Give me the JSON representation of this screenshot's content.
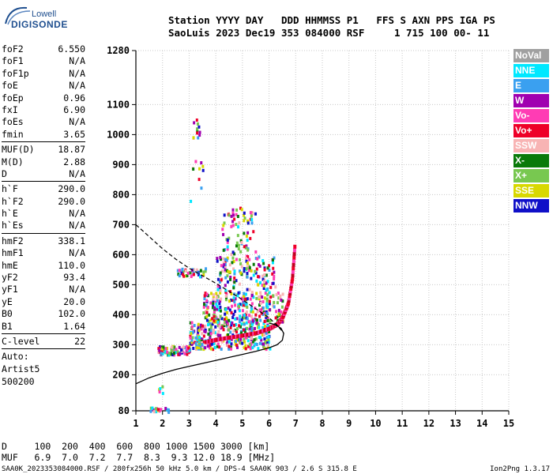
{
  "logo": {
    "brand": "Lowell",
    "product": "DIGISONDE"
  },
  "header": {
    "line1": "Station YYYY DAY   DDD HHMMSS P1   FFS S AXN PPS IGA PS",
    "line2": "SaoLuis 2023 Dec19 353 084000 RSF     1 715 100 00- 11"
  },
  "params": {
    "group1": [
      {
        "label": "foF2",
        "value": "6.550"
      },
      {
        "label": "foF1",
        "value": "N/A"
      },
      {
        "label": "foF1p",
        "value": "N/A"
      },
      {
        "label": "foE",
        "value": "N/A"
      },
      {
        "label": "foEp",
        "value": "0.96"
      },
      {
        "label": "fxI",
        "value": "6.90"
      },
      {
        "label": "foEs",
        "value": "N/A"
      },
      {
        "label": "fmin",
        "value": "3.65"
      }
    ],
    "group2": [
      {
        "label": "MUF(D)",
        "value": "18.87"
      },
      {
        "label": "M(D)",
        "value": "2.88"
      },
      {
        "label": "D",
        "value": "N/A"
      }
    ],
    "group3": [
      {
        "label": "h`F",
        "value": "290.0"
      },
      {
        "label": "h`F2",
        "value": "290.0"
      },
      {
        "label": "h`E",
        "value": "N/A"
      },
      {
        "label": "h`Es",
        "value": "N/A"
      }
    ],
    "group4": [
      {
        "label": "hmF2",
        "value": "338.1"
      },
      {
        "label": "hmF1",
        "value": "N/A"
      },
      {
        "label": "hmE",
        "value": "110.0"
      },
      {
        "label": "yF2",
        "value": "93.4"
      },
      {
        "label": "yF1",
        "value": "N/A"
      },
      {
        "label": "yE",
        "value": "20.0"
      },
      {
        "label": "B0",
        "value": "102.0"
      },
      {
        "label": "B1",
        "value": "1.64"
      }
    ],
    "group5": [
      {
        "label": "C-level",
        "value": "22"
      }
    ],
    "notes": [
      "Auto:",
      "Artist5",
      "500200"
    ]
  },
  "legend": [
    {
      "label": "NoVal",
      "color": "#a0a0a0"
    },
    {
      "label": "NNE",
      "color": "#00e8ff"
    },
    {
      "label": "E",
      "color": "#3aa0f0"
    },
    {
      "label": "W",
      "color": "#a000b0"
    },
    {
      "label": "Vo-",
      "color": "#ff3cb4"
    },
    {
      "label": "Vo+",
      "color": "#ee0028"
    },
    {
      "label": "SSW",
      "color": "#f8b4b4"
    },
    {
      "label": "X-",
      "color": "#0a7a0a"
    },
    {
      "label": "X+",
      "color": "#78c850"
    },
    {
      "label": "SSE",
      "color": "#d8d800"
    },
    {
      "label": "NNW",
      "color": "#1010c8"
    }
  ],
  "muf_table": {
    "line1": "D     100  200  400  600  800 1000 1500 3000 [km]",
    "line2": "MUF   6.9  7.0  7.2  7.7  8.3  9.3 12.0 18.9 [MHz]"
  },
  "footer": {
    "left": "SAA0K_2023353084000.RSF / 280fx256h 50 kHz 5.0 km / DPS-4 SAA0K 903 / 2.6 S 315.8 E",
    "right": "Ion2Png 1.3.17"
  },
  "chart_data": {
    "type": "scatter",
    "xlim": [
      1,
      15
    ],
    "ylim": [
      80,
      1280
    ],
    "x_ticks": [
      1,
      2,
      3,
      4,
      5,
      6,
      7,
      8,
      9,
      10,
      11,
      12,
      13,
      14,
      15
    ],
    "y_ticks": [
      80,
      200,
      300,
      400,
      500,
      600,
      700,
      800,
      900,
      1000,
      1100,
      1280
    ],
    "xlabel": "",
    "ylabel": "",
    "grid": true,
    "profile_solid": {
      "x": [
        1.0,
        1.5,
        2.0,
        2.5,
        3.0,
        3.5,
        4.0,
        4.5,
        5.0,
        5.5,
        6.0,
        6.3,
        6.5,
        6.55,
        6.45,
        6.2,
        6.0
      ],
      "y": [
        170,
        190,
        205,
        218,
        228,
        238,
        248,
        258,
        268,
        278,
        290,
        300,
        315,
        338,
        355,
        368,
        372
      ]
    },
    "profile_dashed": {
      "x": [
        1.0,
        1.5,
        2.0,
        2.5,
        3.0,
        3.5,
        4.0,
        4.5,
        5.0,
        5.5,
        6.0,
        6.3,
        6.5,
        6.55
      ],
      "y": [
        700,
        660,
        620,
        585,
        555,
        530,
        505,
        478,
        450,
        420,
        390,
        365,
        345,
        338
      ]
    },
    "trace_f2": {
      "x": [
        3.6,
        4.0,
        4.5,
        5.0,
        5.5,
        6.0,
        6.3,
        6.5,
        6.7,
        6.85,
        6.95
      ],
      "y": [
        310,
        318,
        325,
        332,
        340,
        355,
        370,
        395,
        440,
        520,
        640
      ]
    },
    "clusters": [
      {
        "xmin": 1.8,
        "xmax": 3.0,
        "ymin": 270,
        "ymax": 300,
        "n": 90
      },
      {
        "xmin": 3.0,
        "xmax": 6.0,
        "ymin": 290,
        "ymax": 380,
        "n": 320
      },
      {
        "xmin": 3.5,
        "xmax": 6.5,
        "ymin": 380,
        "ymax": 480,
        "n": 260
      },
      {
        "xmin": 4.0,
        "xmax": 6.2,
        "ymin": 480,
        "ymax": 600,
        "n": 140
      },
      {
        "xmin": 4.2,
        "xmax": 5.5,
        "ymin": 600,
        "ymax": 760,
        "n": 70
      },
      {
        "xmin": 2.5,
        "xmax": 3.6,
        "ymin": 530,
        "ymax": 560,
        "n": 40
      },
      {
        "xmin": 3.1,
        "xmax": 3.4,
        "ymin": 990,
        "ymax": 1060,
        "n": 12
      },
      {
        "xmin": 1.5,
        "xmax": 2.2,
        "ymin": 80,
        "ymax": 95,
        "n": 18
      },
      {
        "xmin": 1.8,
        "xmax": 2.0,
        "ymin": 140,
        "ymax": 165,
        "n": 5
      },
      {
        "xmin": 3.0,
        "xmax": 3.5,
        "ymin": 780,
        "ymax": 920,
        "n": 10
      }
    ]
  }
}
